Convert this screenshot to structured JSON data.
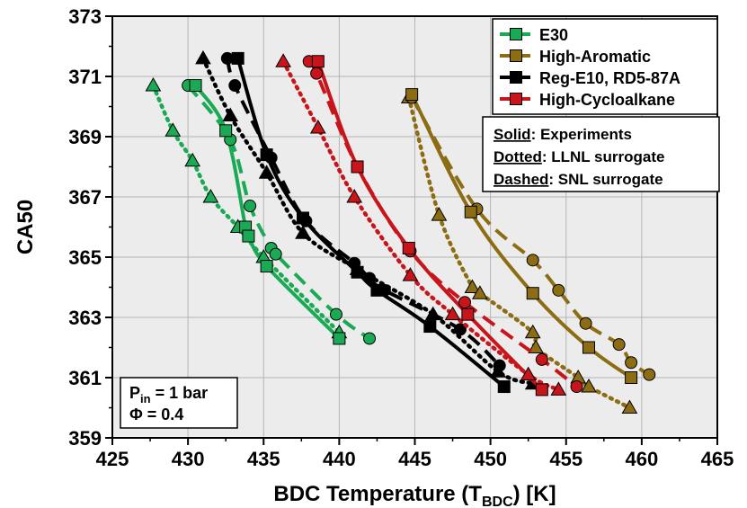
{
  "chart_data": {
    "type": "line",
    "xlabel_main": "BDC Temperature (T",
    "xlabel_sub": "BDC",
    "xlabel_tail": ") [K]",
    "ylabel": "CA50",
    "xlim": [
      425,
      465
    ],
    "ylim": [
      359,
      373
    ],
    "xticks": [
      425,
      430,
      435,
      440,
      445,
      450,
      455,
      460,
      465
    ],
    "yticks": [
      359,
      361,
      363,
      365,
      367,
      369,
      371,
      373
    ],
    "grid": true,
    "legend_position": "top-right",
    "series": [
      {
        "name": "E30",
        "color": "#1aaa55",
        "experiments": [
          [
            430.5,
            370.7
          ],
          [
            432.5,
            369.2
          ],
          [
            433.8,
            366.0
          ],
          [
            434.0,
            365.7
          ],
          [
            435.2,
            364.7
          ],
          [
            440.0,
            362.3
          ]
        ],
        "llnl_surrogate": [
          [
            427.7,
            370.7
          ],
          [
            429.0,
            369.2
          ],
          [
            430.3,
            368.2
          ],
          [
            431.5,
            367.0
          ],
          [
            433.3,
            366.0
          ],
          [
            435.0,
            365.0
          ],
          [
            440.0,
            362.5
          ]
        ],
        "snl_surrogate": [
          [
            430.0,
            370.7
          ],
          [
            432.8,
            368.9
          ],
          [
            434.1,
            366.7
          ],
          [
            435.5,
            365.3
          ],
          [
            435.8,
            365.1
          ],
          [
            439.8,
            363.1
          ],
          [
            442.0,
            362.3
          ]
        ]
      },
      {
        "name": "High-Aromatic",
        "color": "#8c6d13",
        "experiments": [
          [
            444.8,
            370.4
          ],
          [
            448.7,
            366.5
          ],
          [
            452.8,
            363.8
          ],
          [
            456.5,
            362.0
          ],
          [
            459.3,
            361.0
          ]
        ],
        "llnl_surrogate": [
          [
            444.6,
            370.3
          ],
          [
            446.6,
            366.4
          ],
          [
            448.8,
            364.0
          ],
          [
            449.3,
            363.8
          ],
          [
            452.8,
            362.5
          ],
          [
            453.0,
            362.0
          ],
          [
            455.8,
            361.0
          ],
          [
            456.5,
            360.7
          ],
          [
            459.2,
            360.0
          ]
        ],
        "snl_surrogate": [
          [
            444.8,
            370.3
          ],
          [
            449.1,
            366.6
          ],
          [
            452.8,
            364.9
          ],
          [
            454.5,
            363.9
          ],
          [
            456.3,
            362.8
          ],
          [
            458.5,
            362.1
          ],
          [
            459.3,
            361.5
          ],
          [
            460.5,
            361.1
          ]
        ]
      },
      {
        "name": "Reg-E10, RD5-87A",
        "color": "#000000",
        "experiments": [
          [
            433.3,
            371.6
          ],
          [
            435.2,
            368.4
          ],
          [
            437.6,
            366.3
          ],
          [
            441.2,
            364.5
          ],
          [
            442.5,
            363.9
          ],
          [
            446.0,
            362.7
          ],
          [
            450.9,
            360.7
          ]
        ],
        "llnl_surrogate": [
          [
            431.0,
            371.6
          ],
          [
            432.8,
            369.7
          ],
          [
            435.2,
            367.8
          ],
          [
            437.6,
            365.8
          ],
          [
            441.2,
            364.6
          ],
          [
            446.2,
            363.1
          ],
          [
            450.5,
            361.2
          ],
          [
            452.8,
            360.8
          ]
        ],
        "snl_surrogate": [
          [
            432.6,
            371.6
          ],
          [
            433.1,
            370.7
          ],
          [
            435.5,
            368.3
          ],
          [
            437.8,
            366.2
          ],
          [
            441.0,
            364.8
          ],
          [
            442.0,
            364.3
          ],
          [
            443.0,
            363.9
          ],
          [
            448.0,
            362.6
          ],
          [
            450.6,
            361.4
          ]
        ]
      },
      {
        "name": "High-Cycloalkane",
        "color": "#c8151b",
        "experiments": [
          [
            438.6,
            371.5
          ],
          [
            441.2,
            368.0
          ],
          [
            444.6,
            365.3
          ],
          [
            448.5,
            363.1
          ],
          [
            453.4,
            360.6
          ]
        ],
        "llnl_surrogate": [
          [
            436.3,
            371.5
          ],
          [
            438.6,
            369.3
          ],
          [
            441.0,
            367.0
          ],
          [
            444.7,
            364.4
          ],
          [
            447.5,
            363.1
          ],
          [
            452.5,
            361.1
          ],
          [
            454.5,
            360.6
          ]
        ],
        "snl_surrogate": [
          [
            438.0,
            371.5
          ],
          [
            438.5,
            371.1
          ],
          [
            441.2,
            368.0
          ],
          [
            444.7,
            365.2
          ],
          [
            448.3,
            363.5
          ],
          [
            453.4,
            361.6
          ],
          [
            455.7,
            360.7
          ]
        ]
      }
    ],
    "line_styles": {
      "solid_label": "Solid",
      "solid_text": ": Experiments",
      "dotted_label": "Dotted",
      "dotted_text": ": LLNL surrogate",
      "dashed_label": "Dashed",
      "dashed_text": ": SNL surrogate"
    },
    "conditions": {
      "pin_main": "P",
      "pin_sub": "in",
      "pin_tail": " = 1 bar",
      "phi": "Φ = 0.4"
    }
  }
}
